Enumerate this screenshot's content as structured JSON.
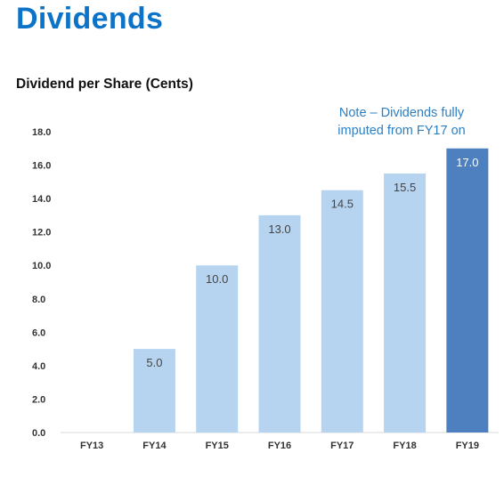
{
  "page": {
    "title": "Dividends"
  },
  "chart": {
    "title": "Dividend per Share (Cents)",
    "note": "Note – Dividends fully imputed from FY17 on"
  },
  "chart_data": {
    "type": "bar",
    "title": "Dividend per Share (Cents)",
    "xlabel": "",
    "ylabel": "",
    "categories": [
      "FY13",
      "FY14",
      "FY15",
      "FY16",
      "FY17",
      "FY18",
      "FY19"
    ],
    "values": [
      null,
      5.0,
      10.0,
      13.0,
      14.5,
      15.5,
      17.0
    ],
    "data_labels": [
      "",
      "5.0",
      "10.0",
      "13.0",
      "14.5",
      "15.5",
      "17.0"
    ],
    "yticks": [
      "0.0",
      "2.0",
      "4.0",
      "6.0",
      "8.0",
      "10.0",
      "12.0",
      "14.0",
      "16.0",
      "18.0"
    ],
    "ylim": [
      0,
      18
    ],
    "grid": false,
    "annotations": [
      "Note – Dividends fully imputed from FY17 on"
    ],
    "colors": {
      "bar": "#b6d4f0",
      "highlight_bar": "#4e7fbe",
      "highlight_category": "FY19",
      "label_dark": "#444444",
      "label_light": "#ffffff",
      "axis": "#d9d9d9",
      "tick_text": "#333333",
      "title": "#0d73c8",
      "note": "#2d7fc4"
    }
  }
}
